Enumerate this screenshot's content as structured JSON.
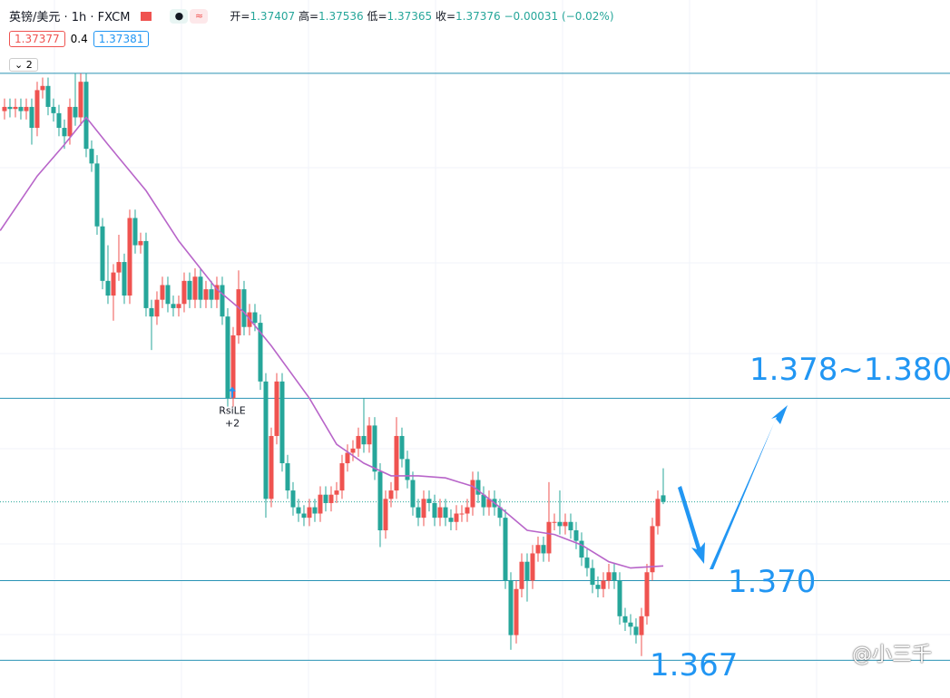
{
  "chart_data": {
    "type": "candlestick",
    "title": "英镑/美元 · 1h · FXCM",
    "ohlc": [
      {
        "label": "开=",
        "value": "1.37407"
      },
      {
        "label": "高=",
        "value": "1.37536"
      },
      {
        "label": "低=",
        "value": "1.37365"
      },
      {
        "label": "收=",
        "value": "1.37376"
      }
    ],
    "change": "−0.00031 (−0.02%)",
    "boxes": [
      "1.37377",
      "0.4",
      "1.37381"
    ],
    "collapse": "2",
    "signal": {
      "name": "RsiLE",
      "count": "+2",
      "index": 41
    },
    "annotations": [
      "1.378~1.380",
      "1.370",
      "1.367"
    ],
    "watermark": "@小三千",
    "up_color": "#ef5350",
    "down_color": "#26a69a",
    "line_color": "#2a93b5",
    "xlim": [
      -0.83,
      173.67
    ],
    "ylim": [
      1.3644,
      1.3977
    ],
    "hlines": [
      1.3942,
      1.3787,
      1.37,
      1.3662
    ],
    "open": [
      1.3924,
      1.3926,
      1.3925,
      1.3926,
      1.3924,
      1.3926,
      1.3916,
      1.3934,
      1.3936,
      1.3926,
      1.3923,
      1.3916,
      1.3912,
      1.3926,
      1.3921,
      1.3938,
      1.3906,
      1.3899,
      1.3869,
      1.3843,
      1.3836,
      1.3847,
      1.3852,
      1.3836,
      1.3873,
      1.386,
      1.3862,
      1.383,
      1.3826,
      1.3834,
      1.3841,
      1.3832,
      1.383,
      1.3832,
      1.3843,
      1.3834,
      1.3845,
      1.3834,
      1.3839,
      1.3834,
      1.3841,
      1.3826,
      1.3787,
      1.3817,
      1.3839,
      1.3821,
      1.3828,
      1.3823,
      1.3795,
      1.3739,
      1.3769,
      1.3795,
      1.3756,
      1.3743,
      1.3735,
      1.3732,
      1.373,
      1.3735,
      1.3732,
      1.3741,
      1.3737,
      1.3741,
      1.3743,
      1.3756,
      1.3761,
      1.3763,
      1.3769,
      1.3765,
      1.3774,
      1.3752,
      1.3724,
      1.3739,
      1.3743,
      1.3769,
      1.3758,
      1.3748,
      1.3735,
      1.373,
      1.3739,
      1.3737,
      1.373,
      1.3735,
      1.373,
      1.3728,
      1.3732,
      1.3732,
      1.3735,
      1.3748,
      1.3741,
      1.3735,
      1.3739,
      1.3735,
      1.373,
      1.37,
      1.3674,
      1.3696,
      1.3709,
      1.37,
      1.3713,
      1.3717,
      1.3713,
      1.3728,
      1.3728,
      1.3726,
      1.3728,
      1.3724,
      1.3719,
      1.3711,
      1.3706,
      1.3698,
      1.3696,
      1.37,
      1.3704,
      1.37,
      1.3683,
      1.368,
      1.3678,
      1.3674,
      1.3683,
      1.3704,
      1.3726,
      1.37407
    ],
    "high": [
      1.393,
      1.393,
      1.393,
      1.393,
      1.393,
      1.393,
      1.3938,
      1.394,
      1.394,
      1.393,
      1.3927,
      1.392,
      1.393,
      1.3942,
      1.3942,
      1.3942,
      1.391,
      1.3903,
      1.3873,
      1.386,
      1.3851,
      1.3865,
      1.3856,
      1.3877,
      1.3877,
      1.3866,
      1.3866,
      1.3834,
      1.3838,
      1.3845,
      1.3845,
      1.3836,
      1.3836,
      1.3847,
      1.3847,
      1.3849,
      1.3849,
      1.3843,
      1.3843,
      1.3845,
      1.3845,
      1.383,
      1.3821,
      1.3848,
      1.3843,
      1.3832,
      1.3832,
      1.3827,
      1.3799,
      1.3773,
      1.3799,
      1.3799,
      1.376,
      1.3747,
      1.3739,
      1.3736,
      1.3739,
      1.3739,
      1.3745,
      1.3745,
      1.3745,
      1.3747,
      1.376,
      1.3765,
      1.3767,
      1.3773,
      1.3787,
      1.3778,
      1.3778,
      1.3756,
      1.3743,
      1.3747,
      1.3778,
      1.3773,
      1.3762,
      1.3752,
      1.3739,
      1.3743,
      1.3743,
      1.3741,
      1.3739,
      1.3739,
      1.3734,
      1.3736,
      1.3736,
      1.3739,
      1.3752,
      1.3752,
      1.3745,
      1.3743,
      1.3743,
      1.3739,
      1.3734,
      1.3704,
      1.37,
      1.3713,
      1.3713,
      1.3717,
      1.3721,
      1.3721,
      1.3747,
      1.3732,
      1.3743,
      1.3732,
      1.3732,
      1.3728,
      1.3723,
      1.3715,
      1.371,
      1.3702,
      1.3704,
      1.3708,
      1.3708,
      1.3704,
      1.3687,
      1.3684,
      1.3682,
      1.3687,
      1.3708,
      1.373,
      1.3743,
      1.37536
    ],
    "low": [
      1.392,
      1.3921,
      1.3921,
      1.392,
      1.392,
      1.3908,
      1.3912,
      1.393,
      1.3922,
      1.3919,
      1.3912,
      1.3906,
      1.3908,
      1.3917,
      1.3917,
      1.3902,
      1.3895,
      1.3865,
      1.3839,
      1.3832,
      1.3824,
      1.3843,
      1.3832,
      1.3832,
      1.3856,
      1.3856,
      1.3826,
      1.381,
      1.3822,
      1.383,
      1.3828,
      1.3826,
      1.3826,
      1.3828,
      1.383,
      1.383,
      1.383,
      1.383,
      1.383,
      1.383,
      1.3822,
      1.3783,
      1.3783,
      1.3813,
      1.3817,
      1.3817,
      1.3819,
      1.3791,
      1.373,
      1.3735,
      1.3765,
      1.3752,
      1.3739,
      1.3731,
      1.3728,
      1.3726,
      1.3726,
      1.3728,
      1.3728,
      1.3733,
      1.3733,
      1.3737,
      1.3739,
      1.3752,
      1.3757,
      1.3759,
      1.3761,
      1.3761,
      1.3748,
      1.3716,
      1.372,
      1.3735,
      1.3739,
      1.3754,
      1.3744,
      1.3731,
      1.3726,
      1.3726,
      1.3733,
      1.3726,
      1.3726,
      1.3726,
      1.3724,
      1.3724,
      1.3728,
      1.3728,
      1.3731,
      1.3737,
      1.3731,
      1.3731,
      1.3731,
      1.3726,
      1.3696,
      1.3667,
      1.367,
      1.3692,
      1.369,
      1.3696,
      1.3709,
      1.3709,
      1.3709,
      1.3724,
      1.3722,
      1.3722,
      1.372,
      1.3715,
      1.3707,
      1.3702,
      1.3694,
      1.3692,
      1.3692,
      1.3696,
      1.3696,
      1.3679,
      1.3676,
      1.3674,
      1.367,
      1.3664,
      1.3679,
      1.37,
      1.3722,
      1.37365
    ],
    "close": [
      1.3926,
      1.3925,
      1.3926,
      1.3924,
      1.3926,
      1.3916,
      1.3934,
      1.3936,
      1.3926,
      1.3923,
      1.3916,
      1.3912,
      1.3926,
      1.3921,
      1.3938,
      1.3906,
      1.3899,
      1.3869,
      1.3843,
      1.3836,
      1.3847,
      1.3852,
      1.3836,
      1.3873,
      1.386,
      1.3862,
      1.383,
      1.3826,
      1.3834,
      1.3841,
      1.3832,
      1.383,
      1.3832,
      1.3843,
      1.3834,
      1.3845,
      1.3834,
      1.3839,
      1.3834,
      1.3841,
      1.3826,
      1.3787,
      1.3817,
      1.3839,
      1.3821,
      1.3828,
      1.3823,
      1.3795,
      1.3739,
      1.3769,
      1.3795,
      1.3756,
      1.3743,
      1.3735,
      1.3732,
      1.373,
      1.3735,
      1.3732,
      1.3741,
      1.3737,
      1.3741,
      1.3743,
      1.3756,
      1.3761,
      1.3763,
      1.3769,
      1.3765,
      1.3774,
      1.3752,
      1.3724,
      1.3739,
      1.3743,
      1.3769,
      1.3758,
      1.3748,
      1.3735,
      1.373,
      1.3739,
      1.3737,
      1.373,
      1.3735,
      1.373,
      1.3728,
      1.3732,
      1.3732,
      1.3735,
      1.3748,
      1.3741,
      1.3735,
      1.3739,
      1.3735,
      1.373,
      1.37,
      1.3674,
      1.3696,
      1.3709,
      1.37,
      1.3713,
      1.3717,
      1.3713,
      1.3728,
      1.3728,
      1.3726,
      1.3728,
      1.3724,
      1.3719,
      1.3711,
      1.3706,
      1.3698,
      1.3696,
      1.37,
      1.3704,
      1.37,
      1.3683,
      1.368,
      1.3678,
      1.3674,
      1.3683,
      1.3704,
      1.3726,
      1.3739,
      1.37376
    ],
    "ma": {
      "color": "#b865c9",
      "x": [
        -0.8,
        6,
        11,
        15,
        19,
        26,
        32,
        39,
        44,
        49,
        56,
        61,
        66,
        71,
        76,
        81,
        86,
        91,
        96,
        101,
        106,
        111,
        115,
        121
      ],
      "values": [
        1.3867,
        1.3893,
        1.3908,
        1.3921,
        1.3908,
        1.3886,
        1.3862,
        1.3839,
        1.3828,
        1.3812,
        1.3787,
        1.3765,
        1.3756,
        1.375,
        1.375,
        1.3749,
        1.3745,
        1.3735,
        1.3724,
        1.3722,
        1.3717,
        1.3709,
        1.3706,
        1.3707
      ]
    }
  }
}
